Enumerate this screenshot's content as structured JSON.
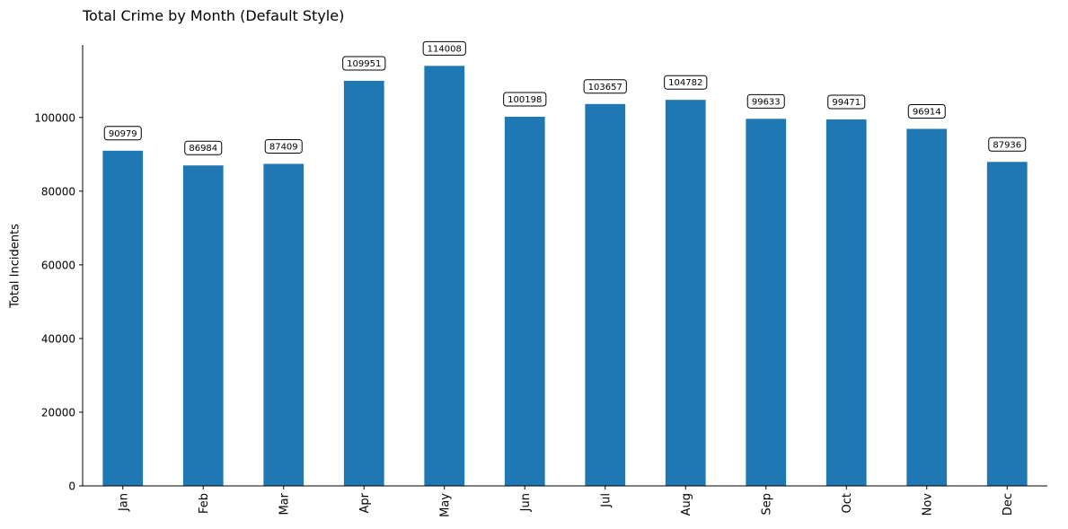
{
  "chart_data": {
    "type": "bar",
    "title": "Total Crime by Month (Default Style)",
    "xlabel": "",
    "ylabel": "Total Incidents",
    "categories": [
      "Jan",
      "Feb",
      "Mar",
      "Apr",
      "May",
      "Jun",
      "Jul",
      "Aug",
      "Sep",
      "Oct",
      "Nov",
      "Dec"
    ],
    "values": [
      90979,
      86984,
      87409,
      109951,
      114008,
      100198,
      103657,
      104782,
      99633,
      99471,
      96914,
      87936
    ],
    "ylim": [
      0,
      119700
    ],
    "yticks": [
      0,
      20000,
      40000,
      60000,
      80000,
      100000
    ],
    "bar_color": "#1f77b4",
    "grid": false,
    "legend": "none",
    "data_labels": true
  }
}
